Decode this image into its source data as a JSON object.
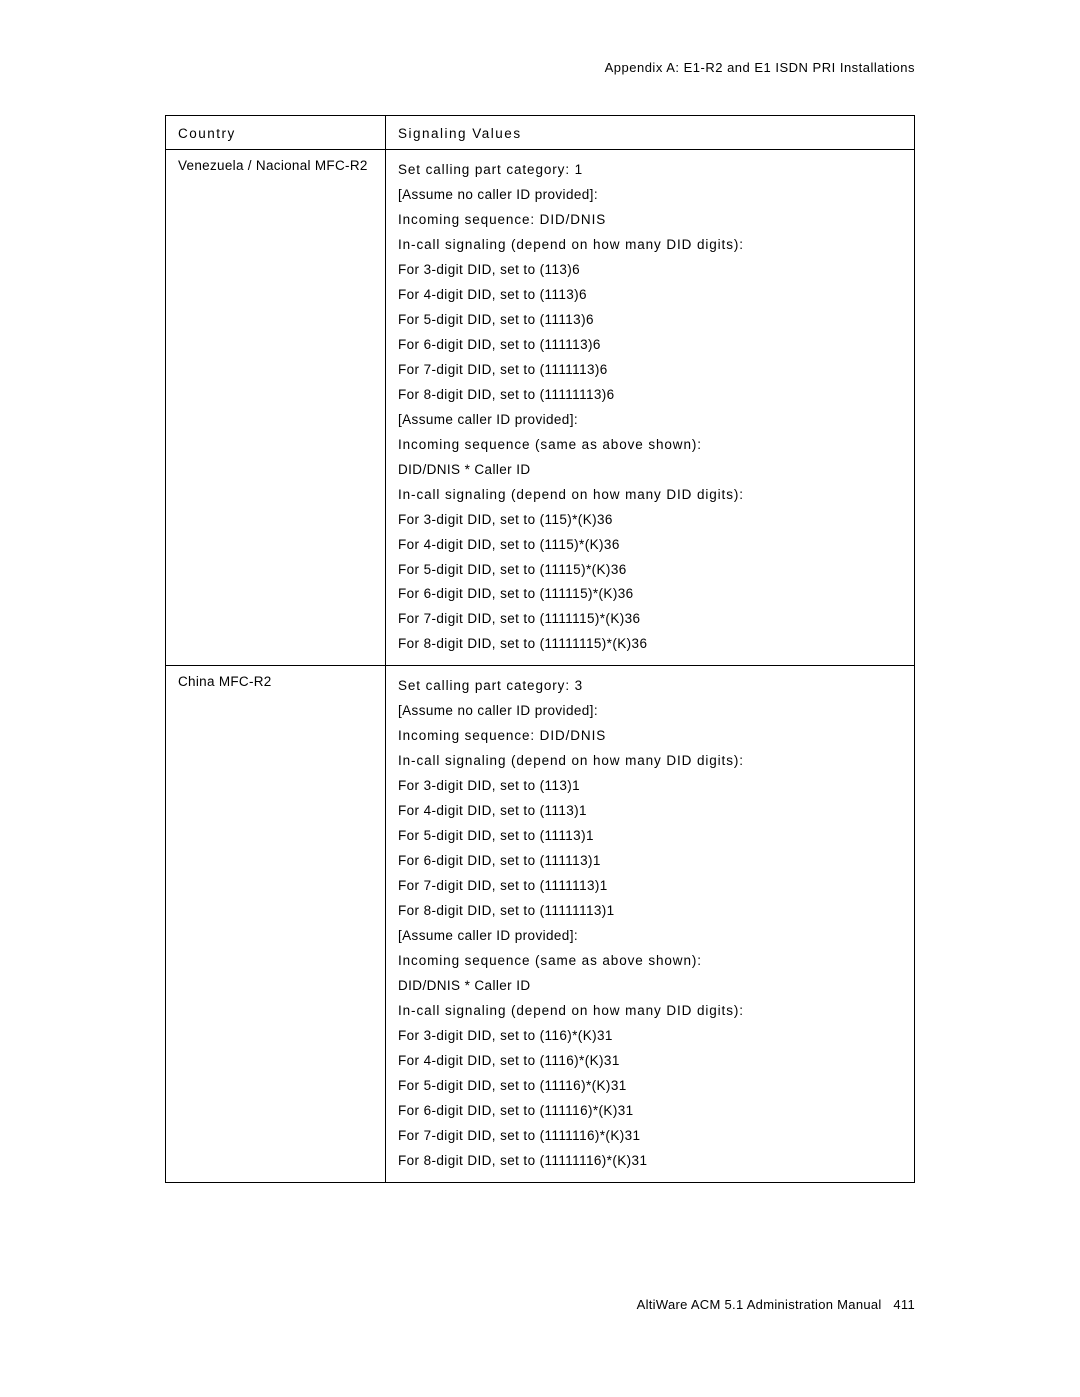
{
  "header": "Appendix A:  E1-R2 and E1 ISDN PRI Installations",
  "table": {
    "columns": [
      "Country",
      "Signaling Values"
    ],
    "rows": [
      {
        "country": "Venezuela / Nacional MFC-R2",
        "lines": [
          {
            "t": "Set calling part category: 1",
            "bold": true
          },
          {
            "t": "[Assume no caller ID provided]:"
          },
          {
            "t": "Incoming sequence: DID/DNIS",
            "bold": true
          },
          {
            "t": "In-call signaling (depend on how many DID digits):",
            "bold": true
          },
          {
            "t": "For 3-digit DID, set to (113)6"
          },
          {
            "t": "For 4-digit DID, set to (1113)6"
          },
          {
            "t": "For 5-digit DID, set to (11113)6"
          },
          {
            "t": "For 6-digit DID, set to (111113)6"
          },
          {
            "t": "For 7-digit DID, set to (1111113)6"
          },
          {
            "t": "For 8-digit DID, set to (11111113)6"
          },
          {
            "t": "[Assume caller ID provided]:"
          },
          {
            "t": "Incoming sequence (same as above shown):",
            "bold": true
          },
          {
            "t": "DID/DNIS  *   Caller ID"
          },
          {
            "t": "In-call signaling (depend on how many DID digits):",
            "bold": true
          },
          {
            "t": "For 3-digit DID, set to (115)*(K)36"
          },
          {
            "t": "For 4-digit DID, set to (1115)*(K)36"
          },
          {
            "t": "For 5-digit DID, set to (11115)*(K)36"
          },
          {
            "t": "For 6-digit DID, set to (111115)*(K)36"
          },
          {
            "t": "For 7-digit DID, set to (1111115)*(K)36"
          },
          {
            "t": "For 8-digit DID, set to (11111115)*(K)36"
          }
        ]
      },
      {
        "country": "China MFC-R2",
        "lines": [
          {
            "t": "Set calling part category: 3",
            "bold": true
          },
          {
            "t": "[Assume no caller ID provided]:"
          },
          {
            "t": "Incoming sequence: DID/DNIS",
            "bold": true
          },
          {
            "t": "In-call signaling (depend on how many DID digits):",
            "bold": true
          },
          {
            "t": "For 3-digit DID, set to (113)1"
          },
          {
            "t": "For 4-digit DID, set to (1113)1"
          },
          {
            "t": "For 5-digit DID, set to (11113)1"
          },
          {
            "t": "For 6-digit DID, set to (111113)1"
          },
          {
            "t": "For 7-digit DID, set to (1111113)1"
          },
          {
            "t": "For 8-digit DID, set to (11111113)1"
          },
          {
            "t": "[Assume caller ID provided]:"
          },
          {
            "t": "Incoming sequence (same as above shown):",
            "bold": true
          },
          {
            "t": "DID/DNIS  *   Caller ID"
          },
          {
            "t": "In-call signaling (depend on how many DID digits):",
            "bold": true
          },
          {
            "t": "For 3-digit DID, set to (116)*(K)31"
          },
          {
            "t": "For 4-digit DID, set to (1116)*(K)31"
          },
          {
            "t": "For 5-digit DID, set to (11116)*(K)31"
          },
          {
            "t": "For 6-digit DID, set to (111116)*(K)31"
          },
          {
            "t": "For 7-digit DID, set to (1111116)*(K)31"
          },
          {
            "t": "For 8-digit DID, set to (11111116)*(K)31"
          }
        ]
      }
    ]
  },
  "footer": {
    "text": "AltiWare ACM 5.1 Administration Manual",
    "page": "411"
  }
}
